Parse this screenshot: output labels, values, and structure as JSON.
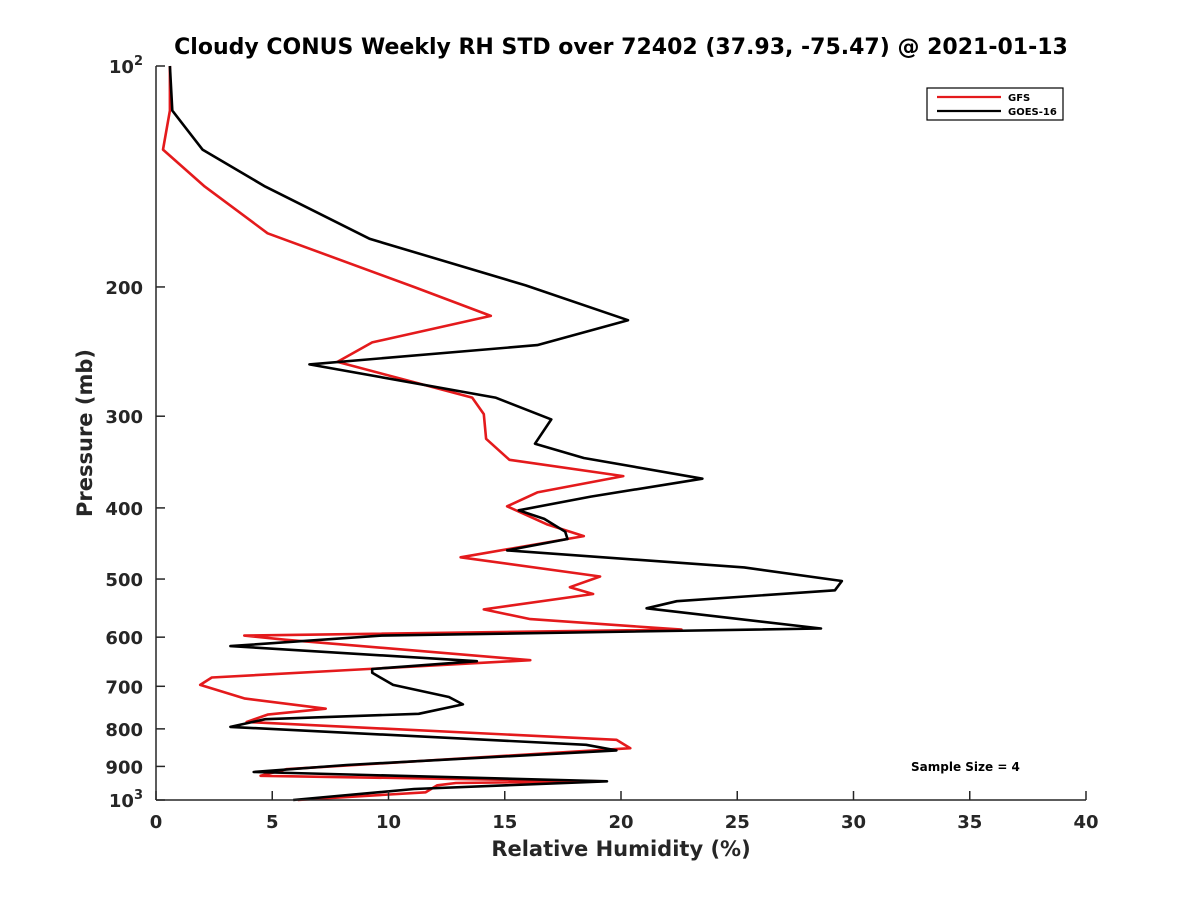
{
  "chart_data": {
    "type": "line",
    "title": "Cloudy CONUS Weekly RH STD over 72402 (37.93, -75.47) @ 2021-01-13",
    "xlabel": "Relative Humidity (%)",
    "ylabel": "Pressure (mb)",
    "xlim": [
      0,
      40
    ],
    "ylim": [
      100,
      1000
    ],
    "yscale": "log",
    "y_reversed": true,
    "grid": false,
    "legend_position": "top-right",
    "x_ticks": [
      "0",
      "5",
      "10",
      "15",
      "20",
      "25",
      "30",
      "35",
      "40"
    ],
    "y_ticks": [
      {
        "value": 100,
        "base": "10",
        "exp": "2"
      },
      {
        "value": 200,
        "label": "200"
      },
      {
        "value": 300,
        "label": "300"
      },
      {
        "value": 400,
        "label": "400"
      },
      {
        "value": 500,
        "label": "500"
      },
      {
        "value": 600,
        "label": "600"
      },
      {
        "value": 700,
        "label": "700"
      },
      {
        "value": 800,
        "label": "800"
      },
      {
        "value": 900,
        "label": "900"
      },
      {
        "value": 1000,
        "base": "10",
        "exp": "3"
      }
    ],
    "annotation": "Sample Size = 4",
    "series": [
      {
        "name": "GFS",
        "color": "#e41a1c",
        "points": [
          [
            0.6,
            100
          ],
          [
            0.6,
            115
          ],
          [
            0.3,
            130
          ],
          [
            2.1,
            146
          ],
          [
            4.8,
            169
          ],
          [
            11.1,
            200
          ],
          [
            14.4,
            219
          ],
          [
            9.3,
            238
          ],
          [
            7.8,
            253
          ],
          [
            13.6,
            283
          ],
          [
            14.1,
            298
          ],
          [
            14.2,
            322
          ],
          [
            15.2,
            344
          ],
          [
            20.1,
            362
          ],
          [
            16.4,
            381
          ],
          [
            15.1,
            398
          ],
          [
            16.8,
            421
          ],
          [
            18.4,
            437
          ],
          [
            13.1,
            467
          ],
          [
            19.1,
            496
          ],
          [
            17.8,
            513
          ],
          [
            18.8,
            524
          ],
          [
            14.1,
            550
          ],
          [
            16.1,
            567
          ],
          [
            22.6,
            586
          ],
          [
            3.8,
            597
          ],
          [
            5.6,
            605
          ],
          [
            16.1,
            645
          ],
          [
            2.4,
            681
          ],
          [
            1.9,
            697
          ],
          [
            3.8,
            727
          ],
          [
            7.3,
            751
          ],
          [
            4.8,
            765
          ],
          [
            3.9,
            783
          ],
          [
            19.8,
            828
          ],
          [
            20.4,
            850
          ],
          [
            5.6,
            908
          ],
          [
            4.5,
            927
          ],
          [
            19.1,
            943
          ],
          [
            12.9,
            948
          ],
          [
            12.1,
            955
          ],
          [
            11.6,
            976
          ],
          [
            6.1,
            1000
          ]
        ]
      },
      {
        "name": "GOES-16",
        "color": "#000000",
        "points": [
          [
            0.6,
            100
          ],
          [
            0.7,
            115
          ],
          [
            2.0,
            130
          ],
          [
            4.7,
            146
          ],
          [
            9.2,
            172
          ],
          [
            15.9,
            199
          ],
          [
            20.3,
            222
          ],
          [
            16.4,
            240
          ],
          [
            6.6,
            255
          ],
          [
            14.6,
            283
          ],
          [
            17.0,
            303
          ],
          [
            16.3,
            327
          ],
          [
            18.4,
            342
          ],
          [
            23.5,
            365
          ],
          [
            18.7,
            386
          ],
          [
            15.6,
            403
          ],
          [
            16.7,
            414
          ],
          [
            17.6,
            431
          ],
          [
            17.7,
            441
          ],
          [
            15.1,
            457
          ],
          [
            25.3,
            482
          ],
          [
            29.5,
            503
          ],
          [
            29.2,
            518
          ],
          [
            22.4,
            536
          ],
          [
            21.1,
            548
          ],
          [
            28.6,
            584
          ],
          [
            9.7,
            597
          ],
          [
            3.2,
            617
          ],
          [
            13.8,
            647
          ],
          [
            9.3,
            663
          ],
          [
            9.3,
            671
          ],
          [
            10.2,
            697
          ],
          [
            12.6,
            724
          ],
          [
            13.2,
            741
          ],
          [
            11.3,
            763
          ],
          [
            4.7,
            776
          ],
          [
            3.2,
            795
          ],
          [
            18.5,
            841
          ],
          [
            19.8,
            856
          ],
          [
            8.2,
            896
          ],
          [
            4.2,
            916
          ],
          [
            19.4,
            943
          ],
          [
            11.1,
            966
          ],
          [
            5.9,
            1000
          ]
        ]
      }
    ]
  }
}
